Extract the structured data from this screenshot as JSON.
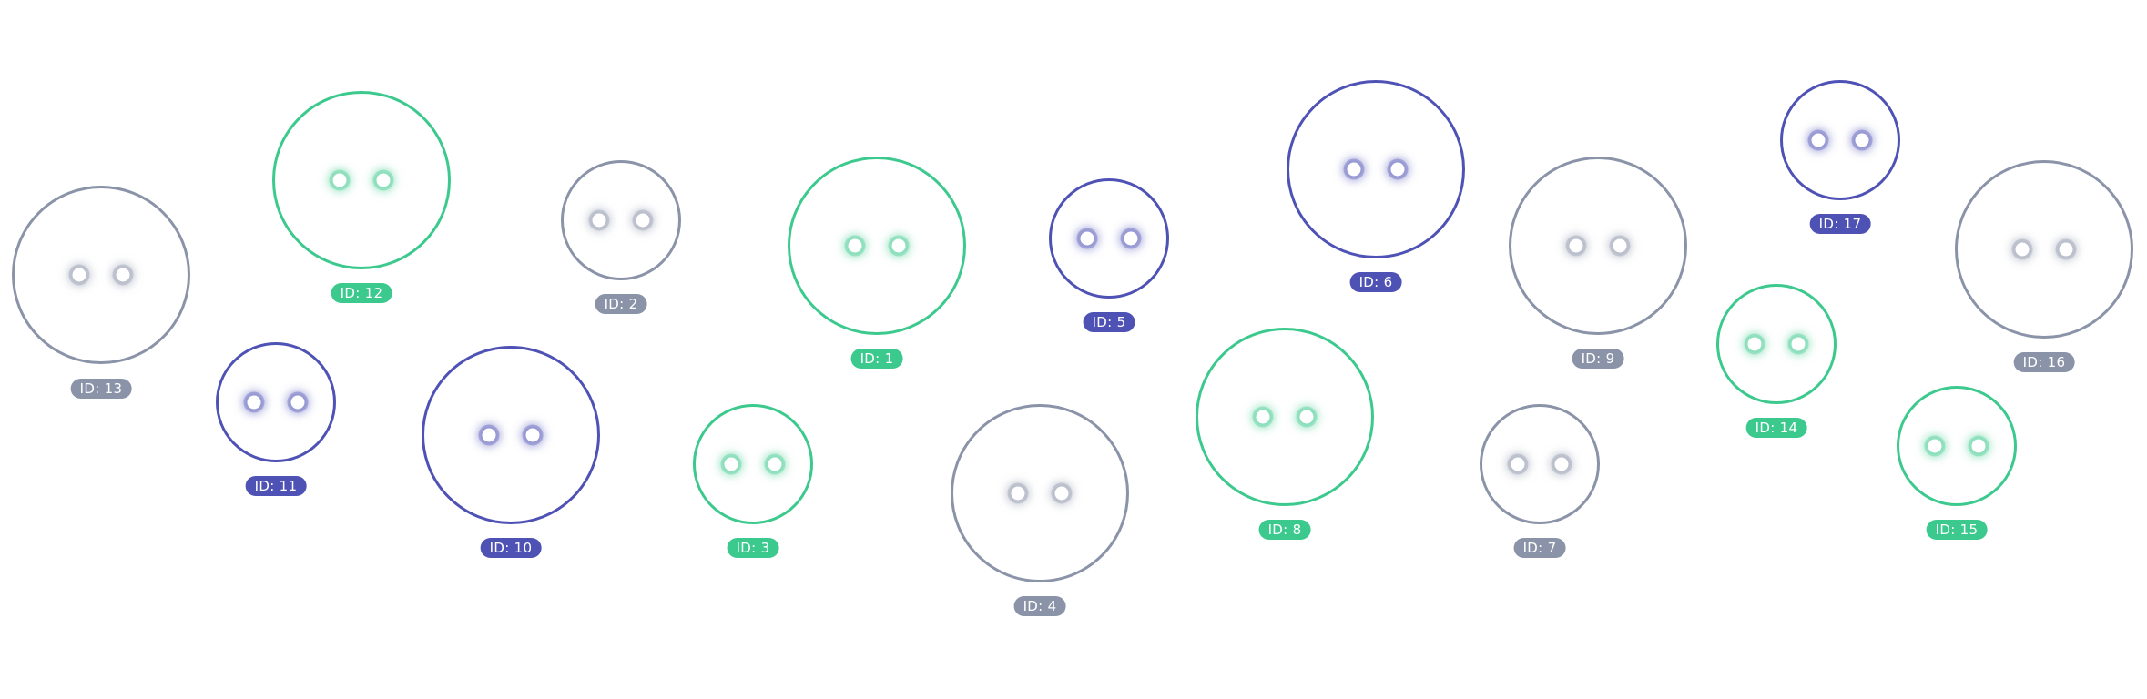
{
  "palette": {
    "green": "#3cc98d",
    "indigo": "#4f52b5",
    "gray": "#8a93a8"
  },
  "agents": [
    {
      "id_label": "ID: 13",
      "status": "gray"
    },
    {
      "id_label": "ID: 12",
      "status": "green"
    },
    {
      "id_label": "ID: 11",
      "status": "indigo"
    },
    {
      "id_label": "ID: 10",
      "status": "indigo"
    },
    {
      "id_label": "ID: 2",
      "status": "gray"
    },
    {
      "id_label": "ID: 3",
      "status": "green"
    },
    {
      "id_label": "ID: 1",
      "status": "green"
    },
    {
      "id_label": "ID: 4",
      "status": "gray"
    },
    {
      "id_label": "ID: 5",
      "status": "indigo"
    },
    {
      "id_label": "ID: 8",
      "status": "green"
    },
    {
      "id_label": "ID: 6",
      "status": "indigo"
    },
    {
      "id_label": "ID: 7",
      "status": "gray"
    },
    {
      "id_label": "ID: 9",
      "status": "gray"
    },
    {
      "id_label": "ID: 14",
      "status": "green"
    },
    {
      "id_label": "ID: 17",
      "status": "indigo"
    },
    {
      "id_label": "ID: 15",
      "status": "green"
    },
    {
      "id_label": "ID: 16",
      "status": "gray"
    }
  ]
}
